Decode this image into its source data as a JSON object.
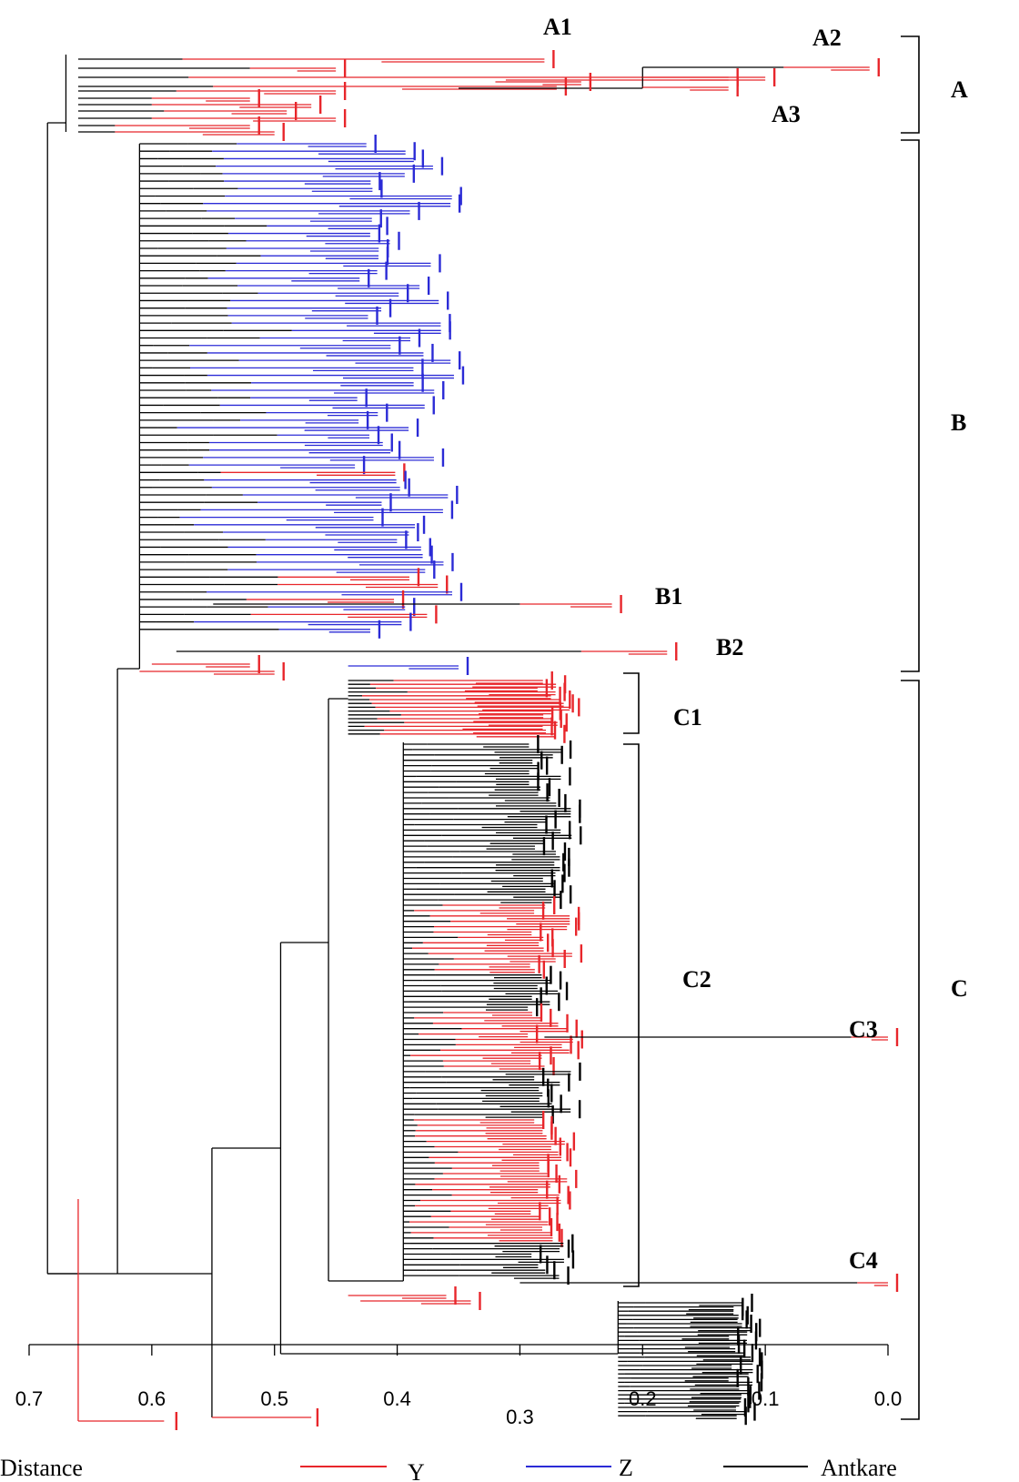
{
  "chart_data": {
    "type": "dendrogram",
    "axis_label": "Distance",
    "x_range": [
      0.7,
      0.0
    ],
    "ticks": [
      "0.7",
      "0.6",
      "0.5",
      "0.4",
      "0.3",
      "0.2",
      "0.1",
      "0.0"
    ],
    "series": [
      {
        "name": "Y",
        "color": "#e8262b"
      },
      {
        "name": "Z",
        "color": "#2b2bd6"
      },
      {
        "name": "Antkare",
        "color": "#000000"
      }
    ],
    "clusters": [
      "A",
      "B",
      "C"
    ],
    "subclusters": [
      "A1",
      "A2",
      "A3",
      "B1",
      "B2",
      "C1",
      "C2",
      "C3",
      "C4"
    ],
    "merge_heights": {
      "root": 0.685,
      "A_vs_BC": 0.685,
      "B_vs_C": 0.628,
      "C_main": 0.551,
      "C1_C2": 0.456
    }
  },
  "labels": {
    "A": "A",
    "B": "B",
    "C": "C",
    "A1": "A1",
    "A2": "A2",
    "A3": "A3",
    "B1": "B1",
    "B2": "B2",
    "C1": "C1",
    "C2": "C2",
    "C3": "C3",
    "C4": "C4"
  },
  "legend": {
    "title": "Distance",
    "y": "Y",
    "z": "Z",
    "antkare": "Antkare"
  },
  "colors": {
    "y": "#e8262b",
    "z": "#2b2bd6",
    "antkare": "#000000"
  }
}
